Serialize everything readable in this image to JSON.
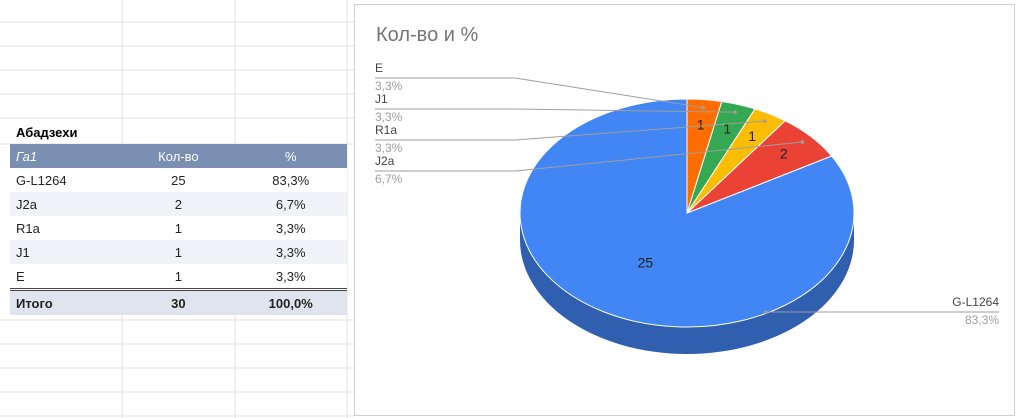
{
  "table": {
    "title": "Абадзехи",
    "headers": [
      "Га1",
      "Кол-во",
      "%"
    ],
    "rows": [
      [
        "G-L1264",
        "25",
        "83,3%"
      ],
      [
        "J2a",
        "2",
        "6,7%"
      ],
      [
        "R1a",
        "1",
        "3,3%"
      ],
      [
        "J1",
        "1",
        "3,3%"
      ],
      [
        "E",
        "1",
        "3,3%"
      ]
    ],
    "total": [
      "Итого",
      "30",
      "100,0%"
    ]
  },
  "chart_data": {
    "type": "pie",
    "title": "Кол-во и %",
    "three_d": true,
    "legend": "none",
    "slices": [
      {
        "label": "G-L1264",
        "value": 25,
        "percent": "83,3%",
        "color": "#4285f4",
        "dark": "#2f5fae"
      },
      {
        "label": "J2a",
        "value": 2,
        "percent": "6,7%",
        "color": "#ea4335",
        "dark": "#a8302a"
      },
      {
        "label": "R1a",
        "value": 1,
        "percent": "3,3%",
        "color": "#fbbc04",
        "dark": "#b98a02"
      },
      {
        "label": "J1",
        "value": 1,
        "percent": "3,3%",
        "color": "#34a853",
        "dark": "#247a3b"
      },
      {
        "label": "E",
        "value": 1,
        "percent": "3,3%",
        "color": "#ff6d01",
        "dark": "#bf5200"
      }
    ]
  }
}
